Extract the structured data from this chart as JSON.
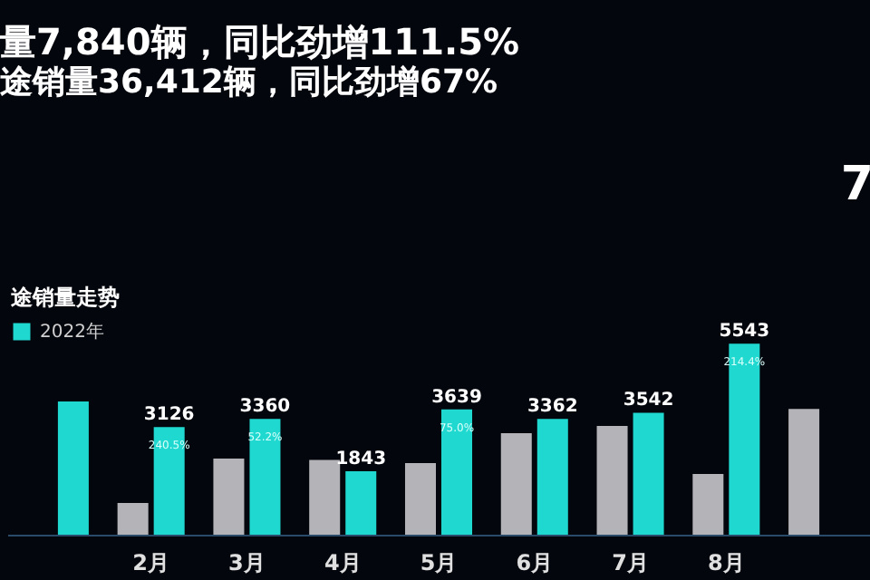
{
  "chart_data": {
    "type": "bar",
    "title": "量7,840辆，同比劲增111.5%",
    "subtitle": "途销量36,412辆，同比劲增67%",
    "categories": [
      null,
      "2月",
      "3月",
      "4月",
      "5月",
      "6月",
      "7月",
      "8月",
      null
    ],
    "series": [
      {
        "color": "#b4b4b8",
        "values": [
          null,
          920,
          2210,
          2170,
          2080,
          2950,
          3160,
          1760,
          3650
        ]
      },
      {
        "name": "2022年",
        "color": "#1fd8cf",
        "values": [
          3870,
          3126,
          3360,
          1843,
          3639,
          3362,
          3542,
          5543,
          null
        ],
        "value_labels": [
          null,
          "3126",
          "3360",
          "1843",
          "3639",
          "3362",
          "3542",
          "5543",
          null
        ]
      }
    ],
    "ylim": [
      0,
      6000
    ],
    "tick_labels": "x",
    "grid": false,
    "legend": "top left",
    "annotations": [
      "途销量走势",
      "7",
      {
        "text": "240.5%",
        "x": "2月",
        "y": 3126
      },
      {
        "text": "52.2%",
        "x": "3月",
        "y": 3360
      },
      {
        "text": "75.0%",
        "x": "5月",
        "y": 3639
      },
      {
        "text": "214.4%",
        "x": "8月",
        "y": 5543
      }
    ]
  }
}
